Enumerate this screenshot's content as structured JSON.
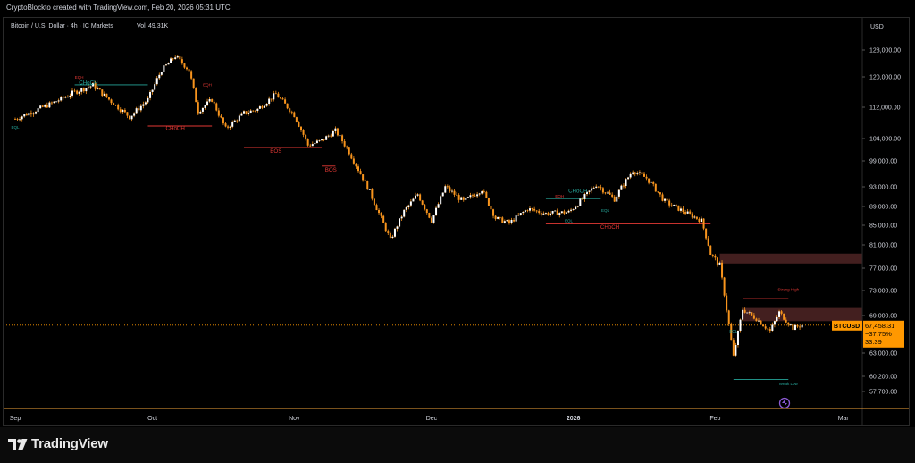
{
  "header": {
    "credit": "CryptoBlockto created with TradingView.com, Feb 20, 2026 05:31 UTC"
  },
  "footer": {
    "brand": "TradingView"
  },
  "colors": {
    "background": "#000000",
    "candle": "#ffffff",
    "wick": "#f7941d",
    "bullish_structure": "#26a69a",
    "bearish_structure": "#e53935",
    "price_tag": "#ff9800",
    "supply_zone": "#5a2a2a"
  },
  "chart_data": {
    "type": "candlestick",
    "title": "Bitcoin / U.S. Dollar · 4h · IC Markets",
    "volume_label": "Vol",
    "volume_value": "49.31K",
    "currency": "USD",
    "y_ticks": [
      "128,000.00",
      "120,000.00",
      "112,000.00",
      "104,000.00",
      "99,000.00",
      "93,000.00",
      "89,000.00",
      "85,000.00",
      "81,000.00",
      "77,000.00",
      "73,000.00",
      "69,000.00",
      "63,000.00",
      "60,200.00",
      "57,700.00"
    ],
    "x_ticks": [
      "Sep",
      "Oct",
      "Nov",
      "Dec",
      "2026",
      "Feb",
      "Mar"
    ],
    "price_path": [
      {
        "x": "Sep 1",
        "y": 109000
      },
      {
        "x": "Sep 5",
        "y": 111000
      },
      {
        "x": "Sep 9",
        "y": 113000
      },
      {
        "x": "Sep 14",
        "y": 116000
      },
      {
        "x": "Sep 18",
        "y": 117800
      },
      {
        "x": "Sep 22",
        "y": 113500
      },
      {
        "x": "Sep 26",
        "y": 109500
      },
      {
        "x": "Sep 30",
        "y": 114000
      },
      {
        "x": "Oct 3",
        "y": 122000
      },
      {
        "x": "Oct 6",
        "y": 126200
      },
      {
        "x": "Oct 9",
        "y": 122000
      },
      {
        "x": "Oct 11",
        "y": 111000
      },
      {
        "x": "Oct 14",
        "y": 114000
      },
      {
        "x": "Oct 17",
        "y": 106500
      },
      {
        "x": "Oct 21",
        "y": 110500
      },
      {
        "x": "Oct 24",
        "y": 111500
      },
      {
        "x": "Oct 28",
        "y": 115500
      },
      {
        "x": "Nov 1",
        "y": 110000
      },
      {
        "x": "Nov 4",
        "y": 102500
      },
      {
        "x": "Nov 7",
        "y": 103500
      },
      {
        "x": "Nov 10",
        "y": 106000
      },
      {
        "x": "Nov 13",
        "y": 101000
      },
      {
        "x": "Nov 17",
        "y": 93000
      },
      {
        "x": "Nov 20",
        "y": 86500
      },
      {
        "x": "Nov 22",
        "y": 82000
      },
      {
        "x": "Nov 25",
        "y": 88000
      },
      {
        "x": "Nov 28",
        "y": 91500
      },
      {
        "x": "Dec 1",
        "y": 86000
      },
      {
        "x": "Dec 4",
        "y": 93000
      },
      {
        "x": "Dec 8",
        "y": 90000
      },
      {
        "x": "Dec 12",
        "y": 92500
      },
      {
        "x": "Dec 15",
        "y": 86500
      },
      {
        "x": "Dec 18",
        "y": 85500
      },
      {
        "x": "Dec 22",
        "y": 88500
      },
      {
        "x": "Dec 26",
        "y": 87500
      },
      {
        "x": "Dec 31",
        "y": 87800
      },
      {
        "x": "Jan 3",
        "y": 90500
      },
      {
        "x": "Jan 6",
        "y": 93500
      },
      {
        "x": "Jan 10",
        "y": 90500
      },
      {
        "x": "Jan 14",
        "y": 96800
      },
      {
        "x": "Jan 17",
        "y": 95000
      },
      {
        "x": "Jan 21",
        "y": 90000
      },
      {
        "x": "Jan 25",
        "y": 88000
      },
      {
        "x": "Jan 29",
        "y": 86000
      },
      {
        "x": "Jan 31",
        "y": 79500
      },
      {
        "x": "Feb 2",
        "y": 77500
      },
      {
        "x": "Feb 5",
        "y": 62500
      },
      {
        "x": "Feb 7",
        "y": 70000
      },
      {
        "x": "Feb 10",
        "y": 68500
      },
      {
        "x": "Feb 13",
        "y": 66500
      },
      {
        "x": "Feb 15",
        "y": 69500
      },
      {
        "x": "Feb 18",
        "y": 67000
      },
      {
        "x": "Feb 20",
        "y": 67458
      }
    ],
    "annotations": [
      {
        "text": "CHoCH",
        "color": "bullish",
        "date": "Sep 17",
        "price": 118000
      },
      {
        "text": "EQH",
        "color": "bearish",
        "date": "Sep 15",
        "price": 119500
      },
      {
        "text": "EQL",
        "color": "bullish",
        "date": "Sep 1",
        "price": 106500
      },
      {
        "text": "CHoCH",
        "color": "bearish",
        "date": "Oct 6",
        "price": 106200
      },
      {
        "text": "EQH",
        "color": "bearish",
        "date": "Oct 13",
        "price": 117500
      },
      {
        "text": "BOS",
        "color": "bearish",
        "date": "Oct 28",
        "price": 100800
      },
      {
        "text": "BOS",
        "color": "bearish",
        "date": "Nov 9",
        "price": 96500
      },
      {
        "text": "EQH",
        "color": "bearish",
        "date": "Dec 29",
        "price": 90800
      },
      {
        "text": "CHoCH",
        "color": "bullish",
        "date": "Jan 2",
        "price": 91800
      },
      {
        "text": "EQL",
        "color": "bullish",
        "date": "Jan 8",
        "price": 87900
      },
      {
        "text": "EQL",
        "color": "bullish",
        "date": "Dec 31",
        "price": 85700
      },
      {
        "text": "CHoCH",
        "color": "bearish",
        "date": "Jan 9",
        "price": 84300
      },
      {
        "text": "Strong High",
        "color": "bearish",
        "date": "Feb 17",
        "price": 72900
      },
      {
        "text": "EQL",
        "color": "bullish",
        "date": "Feb 5",
        "price": 66300
      },
      {
        "text": "Weak Low",
        "color": "bullish",
        "date": "Feb 17",
        "price": 58700
      }
    ],
    "levels": [
      {
        "color": "bullish",
        "from": "Sep 14",
        "to": "Sep 30",
        "price": 117900
      },
      {
        "color": "bearish",
        "from": "Sep 30",
        "to": "Oct 14",
        "price": 107200
      },
      {
        "color": "bearish",
        "from": "Oct 21",
        "to": "Nov 7",
        "price": 102000
      },
      {
        "color": "bearish",
        "from": "Nov 7",
        "to": "Nov 10",
        "price": 97800
      },
      {
        "color": "bullish",
        "from": "Dec 26",
        "to": "Jan 7",
        "price": 90600
      },
      {
        "color": "bearish",
        "from": "Dec 26",
        "to": "Jan 31",
        "price": 85300
      },
      {
        "color": "bearish",
        "from": "Feb 7",
        "to": "Feb 17",
        "price": 71700
      },
      {
        "color": "bullish",
        "from": "Feb 5",
        "to": "Feb 17",
        "price": 59700
      }
    ],
    "zones": [
      {
        "from": "Feb 2",
        "price_low": 77800,
        "price_high": 79500
      },
      {
        "from": "Feb 7",
        "price_low": 68100,
        "price_high": 70200
      }
    ],
    "last_price": {
      "symbol": "BTCUSD",
      "price_label": "67,458.31",
      "price": 67458.31,
      "change": "−37.75%",
      "countdown": "33:39"
    },
    "grid": false
  }
}
